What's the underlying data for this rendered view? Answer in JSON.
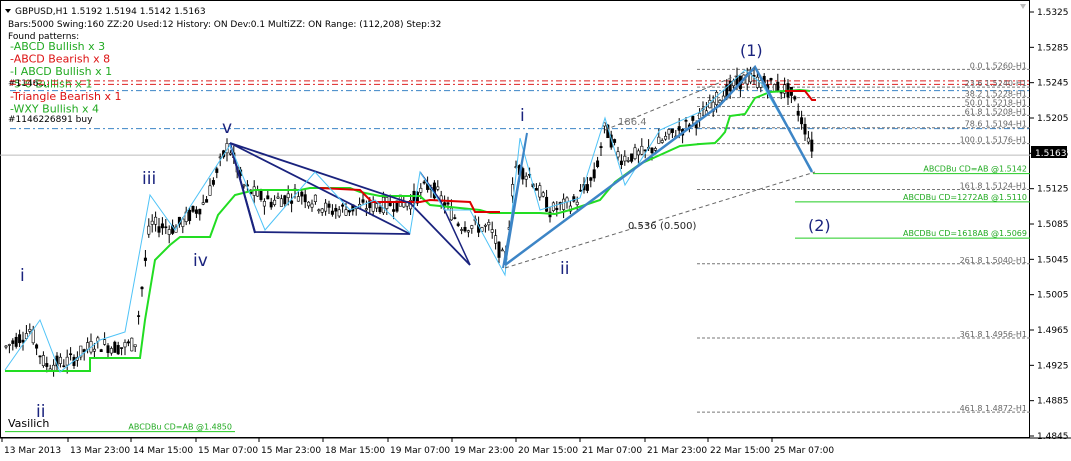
{
  "header": {
    "symbol_line": "GBPUSD,H1  1.5192 1.5194 1.5142 1.5163",
    "info_line": "Bars:5000  Swing:160  ZZ:20  Used:12  History: ON Dev:0.1  MultiZZ: ON  Range: (112,208)  Step:32",
    "found_label": "Found patterns:"
  },
  "patterns": [
    {
      "text": "-ABCD Bullish x 3",
      "color": "#22aa22"
    },
    {
      "text": "-ABCD Bearish x 8",
      "color": "#dd1111"
    },
    {
      "text": "-I ABCD Bullish x 1",
      "color": "#22aa22"
    },
    {
      "text": "-5-0 Bullish x 1",
      "color": "#22aa22"
    },
    {
      "text": "-Triangle Bearish x 1",
      "color": "#dd1111"
    },
    {
      "text": "-WXY Bullish x 4",
      "color": "#22aa22"
    }
  ],
  "order_label": "#1146226891 buy",
  "overlap_label": "#1146...",
  "price_axis": [
    "1.5325",
    "1.5285",
    "1.5245",
    "1.5205",
    "1.5165",
    "1.5125",
    "1.5085",
    "1.5045",
    "1.5005",
    "1.4965",
    "1.4925",
    "1.4885",
    "1.4845"
  ],
  "current_price": "1.5163",
  "time_axis": [
    "13 Mar 2013",
    "13 Mar 23:00",
    "14 Mar 15:00",
    "15 Mar 07:00",
    "15 Mar 23:00",
    "18 Mar 15:00",
    "19 Mar 07:00",
    "19 Mar 23:00",
    "20 Mar 15:00",
    "21 Mar 07:00",
    "21 Mar 23:00",
    "22 Mar 15:00",
    "25 Mar 07:00"
  ],
  "fib_levels": [
    "0.0 1.5260-H1",
    "23.6 1.5240-H1",
    "38.2 1.5228-H1",
    "50.0 1.5218-H1",
    "61.8 1.5208-H1",
    "78.6 1.5194-H1",
    "100.0 1.5176-H1",
    "161.8 1.5124-H1",
    "261.8 1.5040-H1",
    "361.8 1.4956-H1",
    "461.8 1.4872-H1"
  ],
  "abcd_labels": [
    "ABCDBu CD=AB    @1.5142",
    "ABCDBu CD=1272AB    @1.5110",
    "ABCDBu CD=1618AB    @1.5069"
  ],
  "abcd_bottom": "ABCDBu CD=AB    @1.4850",
  "wave_labels": {
    "w1": "(1)",
    "w2": "(2)",
    "i_left": "i",
    "ii_left": "ii",
    "iii": "iii",
    "iv": "iv",
    "v": "v",
    "i_mid": "i",
    "ii_mid": "ii"
  },
  "ratio_labels": {
    "r1": "186.4",
    "r2": "0.536",
    "r3": "(0.500)"
  },
  "author": "Vasilich",
  "colors": {
    "green_text": "#22aa22",
    "red_text": "#dd1111",
    "price_line": "#ff0000",
    "candle": "#000000",
    "navy": "#1a237e",
    "zigzag_blue": "#3d85c6",
    "support_green": "#22dd22",
    "resistance_red": "#dd0000"
  }
}
